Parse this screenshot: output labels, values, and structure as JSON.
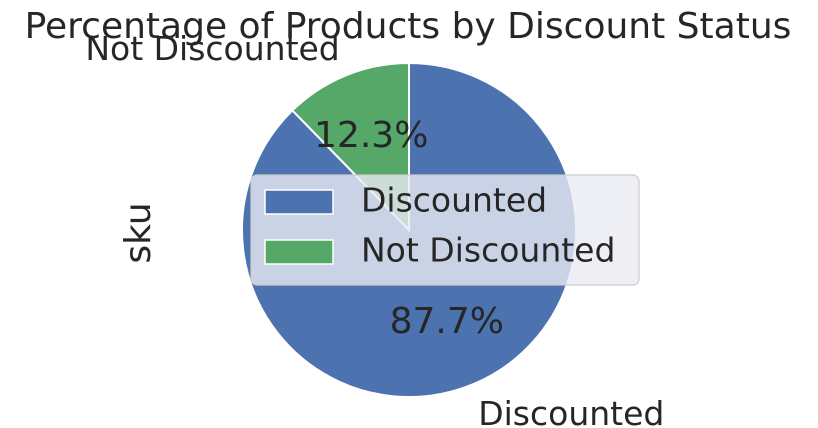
{
  "chart_data": {
    "type": "pie",
    "title": "Percentage of Products by Discount Status",
    "ylabel": "sku",
    "startangle_deg": 90,
    "direction": "clockwise-from-top",
    "slices": [
      {
        "name": "Discounted",
        "percent": 87.7,
        "pct_label": "87.7%",
        "color": "#4c72b0"
      },
      {
        "name": "Not Discounted",
        "percent": 12.3,
        "pct_label": "12.3%",
        "color": "#55a868"
      }
    ],
    "legend": {
      "placement": "center-right",
      "entries": [
        "Discounted",
        "Not Discounted"
      ]
    }
  }
}
